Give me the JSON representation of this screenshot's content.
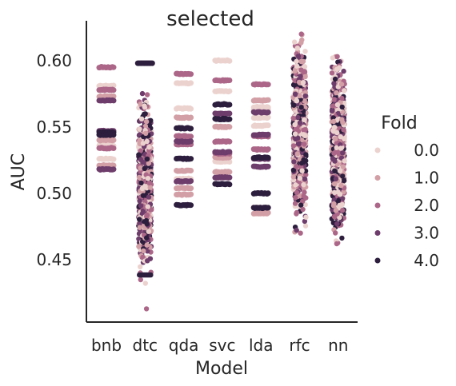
{
  "chart_data": {
    "type": "scatter",
    "title": "selected",
    "xlabel": "Model",
    "ylabel": "AUC",
    "categories": [
      "bnb",
      "dtc",
      "qda",
      "svc",
      "lda",
      "rfc",
      "nn"
    ],
    "ylim": [
      0.403,
      0.63
    ],
    "yticks": [
      0.45,
      0.5,
      0.55,
      0.6
    ],
    "ytick_labels": [
      "0.45",
      "0.50",
      "0.55",
      "0.60"
    ],
    "grid": false,
    "legend": {
      "title": "Fold",
      "placement": "right",
      "entries": [
        "0.0",
        "1.0",
        "2.0",
        "3.0",
        "4.0"
      ]
    },
    "series_colors": [
      "#ecd2cf",
      "#d39fa6",
      "#ac6788",
      "#6e3d6b",
      "#2d1e3e"
    ],
    "series_values": [
      0.0,
      1.0,
      2.0,
      3.0,
      4.0
    ],
    "summary_ranges": {
      "bnb": [
        0.518,
        0.595
      ],
      "dtc": [
        0.413,
        0.598
      ],
      "qda": [
        0.491,
        0.59
      ],
      "svc": [
        0.507,
        0.6
      ],
      "lda": [
        0.485,
        0.582
      ],
      "rfc": [
        0.47,
        0.62
      ],
      "nn": [
        0.462,
        0.603
      ]
    },
    "level_values": {
      "bnb": {
        "0": [
          0.581,
          0.526,
          0.536
        ],
        "1": [
          0.573,
          0.54,
          0.521
        ],
        "2": [
          0.595,
          0.578,
          0.534
        ],
        "3": [
          0.57,
          0.547,
          0.518
        ],
        "4": [
          0.546,
          0.544
        ]
      },
      "qda": {
        "0": [
          0.583,
          0.564,
          0.511
        ],
        "1": [
          0.557,
          0.517,
          0.499,
          0.504
        ],
        "2": [
          0.59,
          0.543,
          0.537
        ],
        "3": [
          0.539,
          0.509
        ],
        "4": [
          0.526,
          0.491,
          0.549
        ]
      },
      "svc": {
        "0": [
          0.6,
          0.577,
          0.524
        ],
        "1": [
          0.55,
          0.527,
          0.516
        ],
        "2": [
          0.585,
          0.53,
          0.539
        ],
        "3": [
          0.512,
          0.531,
          0.56
        ],
        "4": [
          0.567,
          0.556,
          0.507
        ]
      },
      "lda": {
        "0": [
          0.565,
          0.563,
          0.557,
          0.551
        ],
        "1": [
          0.57,
          0.485,
          0.489
        ],
        "2": [
          0.582,
          0.543,
          0.533
        ],
        "3": [
          0.526,
          0.544,
          0.52,
          0.561
        ],
        "4": [
          0.5,
          0.489,
          0.527
        ]
      }
    },
    "notes": "Strip plot of AUC per Model, points colored by Fold (0.0-4.0). dtc, rfc and nn have dense scatter within the listed ranges."
  }
}
